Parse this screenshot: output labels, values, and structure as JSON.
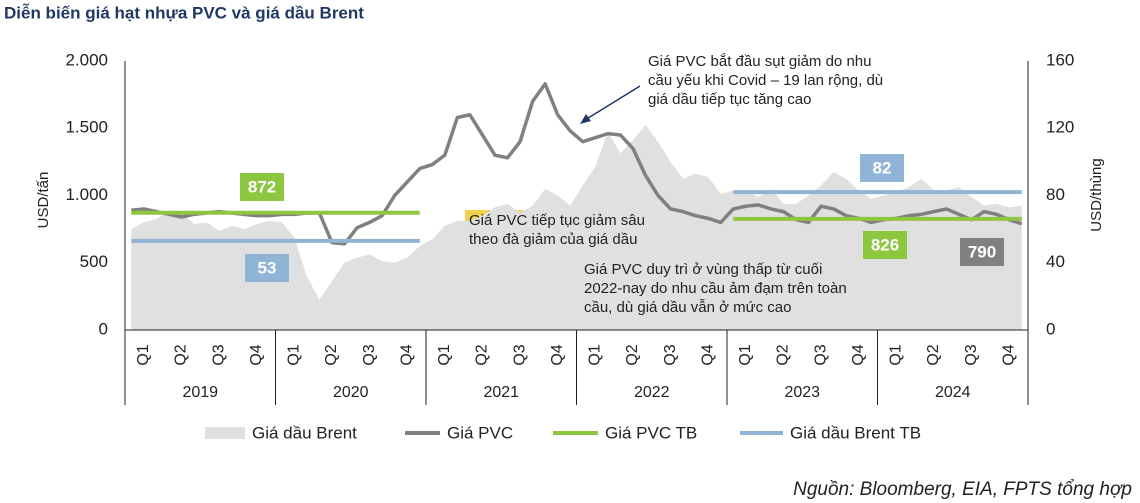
{
  "chart_data": {
    "type": "line",
    "title": "Diễn biến giá hạt nhựa PVC và giá dầu Brent",
    "y_label": "USD/tấn",
    "y2_label": "USD/thùng",
    "source": "Nguồn: Bloomberg, EIA, FPTS tổng hợp",
    "categories": [
      null,
      "Q1",
      null,
      null,
      "Q2",
      null,
      null,
      "Q3",
      null,
      null,
      "Q4",
      null,
      null,
      "Q1",
      null,
      null,
      "Q2",
      null,
      null,
      "Q3",
      null,
      null,
      "Q4",
      null,
      null,
      "Q1",
      null,
      null,
      "Q2",
      null,
      null,
      "Q3",
      null,
      null,
      "Q4",
      null,
      null,
      "Q1",
      null,
      null,
      "Q2",
      null,
      null,
      "Q3",
      null,
      null,
      "Q4",
      null,
      null,
      "Q1",
      null,
      null,
      "Q2",
      null,
      null,
      "Q3",
      null,
      null,
      "Q4",
      null,
      null,
      "Q1",
      null,
      null,
      "Q2",
      null,
      null,
      "Q3",
      null,
      null,
      "Q4",
      null
    ],
    "years": [
      "2019",
      "2020",
      "2021",
      "2022",
      "2023",
      "2024"
    ],
    "ylim": [
      0,
      2000
    ],
    "yticks": [
      {
        "value": 0,
        "label": "0"
      },
      {
        "value": 500,
        "label": "500"
      },
      {
        "value": 1000,
        "label": "1.000"
      },
      {
        "value": 1500,
        "label": "1.500"
      },
      {
        "value": 2000,
        "label": "2.000"
      }
    ],
    "y2lim": [
      0,
      160
    ],
    "y2ticks": [
      0,
      40,
      80,
      120,
      160
    ],
    "series": [
      {
        "name": "Giá dầu Brent",
        "type": "area",
        "axis": "y2",
        "color": "#e0e0e0",
        "values": [
          60,
          64,
          66,
          71,
          70,
          63,
          64,
          59,
          62,
          60,
          63,
          65,
          64,
          55,
          32,
          18,
          29,
          40,
          43,
          45,
          41,
          40,
          43,
          50,
          54,
          62,
          65,
          65,
          68,
          73,
          75,
          70,
          74,
          84,
          80,
          74,
          86,
          97,
          118,
          105,
          113,
          122,
          112,
          100,
          90,
          93,
          91,
          81,
          83,
          83,
          79,
          84,
          75,
          75,
          80,
          86,
          94,
          90,
          83,
          78,
          80,
          82,
          85,
          90,
          83,
          83,
          85,
          79,
          74,
          75,
          73,
          74
        ]
      },
      {
        "name": "Giá PVC",
        "type": "line",
        "color": "#808080",
        "values": [
          890,
          900,
          880,
          860,
          840,
          860,
          870,
          880,
          870,
          860,
          850,
          850,
          860,
          860,
          870,
          870,
          650,
          640,
          760,
          800,
          850,
          1000,
          1100,
          1200,
          1230,
          1300,
          1580,
          1600,
          1450,
          1300,
          1280,
          1400,
          1700,
          1830,
          1600,
          1480,
          1400,
          1430,
          1460,
          1450,
          1350,
          1150,
          1000,
          900,
          880,
          850,
          830,
          800,
          900,
          920,
          930,
          900,
          880,
          820,
          800,
          920,
          900,
          850,
          830,
          800,
          820,
          830,
          850,
          860,
          880,
          900,
          860,
          820,
          880,
          860,
          820,
          790
        ]
      },
      {
        "name": "Giá PVC TB",
        "type": "line",
        "color": "#8dc63f",
        "values": [
          872,
          872,
          872,
          872,
          872,
          872,
          872,
          872,
          872,
          872,
          872,
          872,
          872,
          872,
          872,
          872,
          872,
          872,
          872,
          872,
          872,
          872,
          872,
          872,
          null,
          null,
          null,
          null,
          null,
          null,
          null,
          null,
          null,
          null,
          null,
          null,
          null,
          null,
          null,
          null,
          null,
          null,
          null,
          null,
          null,
          null,
          null,
          null,
          826,
          826,
          826,
          826,
          826,
          826,
          826,
          826,
          826,
          826,
          826,
          826,
          826,
          826,
          826,
          826,
          826,
          826,
          826,
          826,
          826,
          826,
          826,
          826
        ]
      },
      {
        "name": "Giá dầu Brent TB",
        "type": "line",
        "axis": "y2",
        "color": "#8fb4d6",
        "values": [
          53,
          53,
          53,
          53,
          53,
          53,
          53,
          53,
          53,
          53,
          53,
          53,
          53,
          53,
          53,
          53,
          53,
          53,
          53,
          53,
          53,
          53,
          53,
          53,
          null,
          null,
          null,
          null,
          null,
          null,
          null,
          null,
          null,
          null,
          null,
          null,
          null,
          null,
          null,
          null,
          null,
          null,
          null,
          null,
          null,
          null,
          null,
          null,
          82,
          82,
          82,
          82,
          82,
          82,
          82,
          82,
          82,
          82,
          82,
          82,
          82,
          82,
          82,
          82,
          82,
          82,
          82,
          82,
          82,
          82,
          82,
          82
        ]
      }
    ],
    "annotations": [
      {
        "lines": [
          "Giá PVC bắt đầu sụt giảm do nhu",
          "cầu yếu khi Covid – 19 lan rộng, dù",
          "giá dầu tiếp tục tăng cao"
        ]
      },
      {
        "lines": [
          "Giá PVC tiếp tục giảm sâu",
          "theo đà giảm của giá dầu"
        ]
      },
      {
        "lines": [
          "Giá PVC duy trì ở vùng thấp từ cuối",
          "2022-nay do nhu cầu ảm đạm trên toàn",
          "cầu, dù giá dầu vẫn ở mức cao"
        ]
      }
    ]
  }
}
